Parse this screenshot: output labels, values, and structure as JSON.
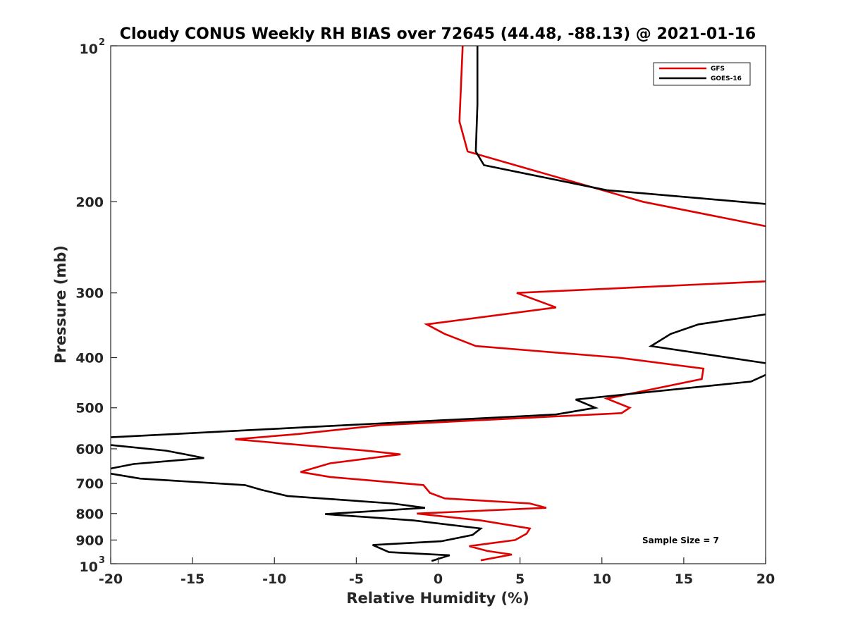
{
  "chart_data": {
    "type": "line",
    "title": "Cloudy CONUS Weekly RH BIAS over 72645 (44.48, -88.13) @ 2021-01-16",
    "xlabel": "Relative Humidity (%)",
    "ylabel": "Pressure (mb)",
    "xlim": [
      -20,
      20
    ],
    "ylim": [
      100,
      1000
    ],
    "yscale": "log",
    "y_reversed": true,
    "grid": false,
    "legend_position": "top-right",
    "annotation": "Sample Size = 7",
    "x_ticks": [
      "-20",
      "-15",
      "-10",
      "-5",
      "0",
      "5",
      "10",
      "15",
      "20"
    ],
    "y_ticks": [
      {
        "value": 100,
        "label": "10",
        "exp": "2"
      },
      {
        "value": 200,
        "label": "200",
        "exp": ""
      },
      {
        "value": 300,
        "label": "300",
        "exp": ""
      },
      {
        "value": 400,
        "label": "400",
        "exp": ""
      },
      {
        "value": 500,
        "label": "500",
        "exp": ""
      },
      {
        "value": 600,
        "label": "600",
        "exp": ""
      },
      {
        "value": 700,
        "label": "700",
        "exp": ""
      },
      {
        "value": 800,
        "label": "800",
        "exp": ""
      },
      {
        "value": 900,
        "label": "900",
        "exp": ""
      },
      {
        "value": 1000,
        "label": "10",
        "exp": "3"
      }
    ],
    "series": [
      {
        "name": "GFS",
        "color": "#e00000",
        "points": [
          [
            1.5,
            100
          ],
          [
            1.3,
            140
          ],
          [
            1.8,
            160
          ],
          [
            12.5,
            200
          ],
          [
            20,
            223
          ],
          [
            null,
            250
          ],
          [
            20,
            285
          ],
          [
            4.8,
            300
          ],
          [
            7.2,
            320
          ],
          [
            -0.7,
            345
          ],
          [
            0.4,
            360
          ],
          [
            2.3,
            380
          ],
          [
            11,
            400
          ],
          [
            16.2,
            420
          ],
          [
            16.1,
            440
          ],
          [
            10.3,
            480
          ],
          [
            11.7,
            500
          ],
          [
            11.2,
            512
          ],
          [
            -3.5,
            540
          ],
          [
            -8.6,
            562
          ],
          [
            -12.4,
            575
          ],
          [
            -4.4,
            605
          ],
          [
            -2.3,
            615
          ],
          [
            -6.6,
            640
          ],
          [
            -8.4,
            665
          ],
          [
            -6.6,
            680
          ],
          [
            -0.9,
            705
          ],
          [
            -0.5,
            730
          ],
          [
            0.4,
            748
          ],
          [
            5.6,
            765
          ],
          [
            6.6,
            780
          ],
          [
            -1.3,
            800
          ],
          [
            2.6,
            825
          ],
          [
            5.6,
            855
          ],
          [
            5.4,
            875
          ],
          [
            4.7,
            900
          ],
          [
            1.9,
            925
          ],
          [
            3.0,
            945
          ],
          [
            4.5,
            960
          ],
          [
            2.6,
            985
          ]
        ]
      },
      {
        "name": "GOES-16",
        "color": "#000000",
        "points": [
          [
            2.4,
            100
          ],
          [
            2.4,
            130
          ],
          [
            2.3,
            160
          ],
          [
            2.8,
            170
          ],
          [
            10.3,
            190
          ],
          [
            20,
            202
          ],
          [
            null,
            250
          ],
          [
            20,
            330
          ],
          [
            15.9,
            345
          ],
          [
            14.2,
            360
          ],
          [
            13.0,
            380
          ],
          [
            20,
            410
          ],
          [
            null,
            420
          ],
          [
            20,
            432
          ],
          [
            19.1,
            445
          ],
          [
            8.4,
            482
          ],
          [
            9.6,
            500
          ],
          [
            7.2,
            515
          ],
          [
            -8.1,
            545
          ],
          [
            -20,
            570
          ],
          [
            null,
            580
          ],
          [
            -20,
            590
          ],
          [
            -16.6,
            605
          ],
          [
            -14.3,
            625
          ],
          [
            -18.6,
            642
          ],
          [
            -20,
            655
          ],
          [
            null,
            660
          ],
          [
            -20,
            670
          ],
          [
            -18.2,
            685
          ],
          [
            -11.8,
            705
          ],
          [
            -10.8,
            720
          ],
          [
            -9.2,
            740
          ],
          [
            -2.8,
            765
          ],
          [
            -0.8,
            780
          ],
          [
            -6.9,
            802
          ],
          [
            -1.5,
            825
          ],
          [
            2.6,
            855
          ],
          [
            2.1,
            880
          ],
          [
            0.2,
            905
          ],
          [
            -4.0,
            920
          ],
          [
            -3.0,
            950
          ],
          [
            0.7,
            963
          ],
          [
            -0.4,
            988
          ]
        ]
      }
    ]
  }
}
